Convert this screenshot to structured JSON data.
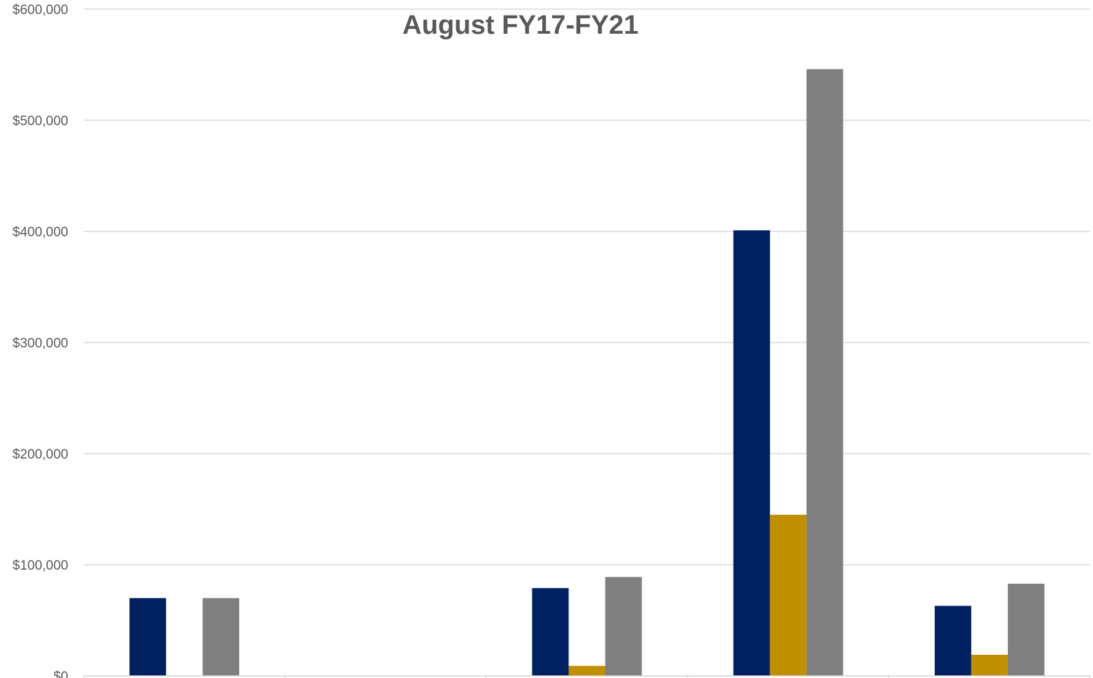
{
  "chart_data": {
    "type": "bar",
    "title": "August FY17-FY21",
    "xlabel": "",
    "ylabel": "",
    "categories": [
      "",
      "",
      "",
      "",
      ""
    ],
    "series": [
      {
        "color": "#002060",
        "values": [
          70000,
          0,
          79000,
          401000,
          63000
        ]
      },
      {
        "color": "#c09000",
        "values": [
          0,
          0,
          9000,
          145000,
          19000
        ]
      },
      {
        "color": "#808080",
        "values": [
          70000,
          0,
          89000,
          546000,
          83000
        ]
      }
    ],
    "ylim": [
      0,
      600000
    ],
    "yticks": [
      0,
      100000,
      200000,
      300000,
      400000,
      500000,
      600000
    ],
    "ytick_labels": [
      "$0",
      "$100,000",
      "$200,000",
      "$300,000",
      "$400,000",
      "$500,000",
      "$600,000"
    ],
    "grid": true,
    "legend": "none"
  }
}
